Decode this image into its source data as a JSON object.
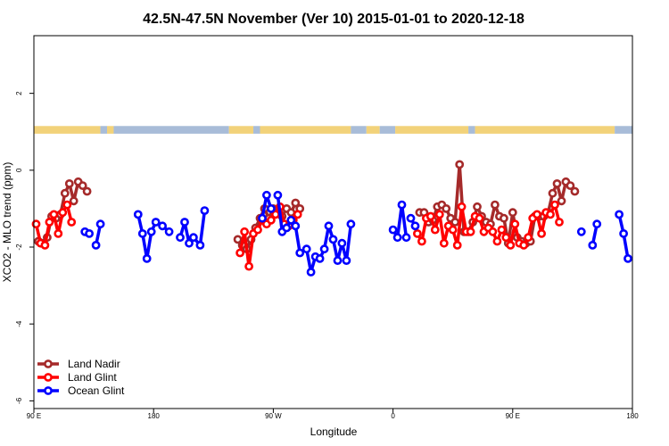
{
  "chart_data": {
    "type": "line",
    "title": "42.5N-47.5N November (Ver 10)   2015-01-01 to 2020-12-18",
    "xlabel": "Longitude",
    "ylabel": "XCO2 - MLO trend (ppm)",
    "xlim": [
      -90,
      180
    ],
    "ylim": [
      -6.2,
      3.5
    ],
    "x_ticks": [
      {
        "value": -90,
        "label": "90 E"
      },
      {
        "value": -36,
        "label": "180"
      },
      {
        "value": 18,
        "label": "90 W"
      },
      {
        "value": 72,
        "label": "0"
      },
      {
        "value": 126,
        "label": "90 E"
      },
      {
        "value": 180,
        "label": "180"
      }
    ],
    "y_ticks": [
      {
        "value": 2,
        "label": "2"
      },
      {
        "value": 0,
        "label": "0"
      },
      {
        "value": -2,
        "label": "-2"
      },
      {
        "value": -4,
        "label": "-4"
      },
      {
        "value": -6,
        "label": "-6"
      }
    ],
    "land_ocean_band": {
      "y_range": [
        0.95,
        1.15
      ],
      "land_color": "#f2d27a",
      "ocean_color": "#a8bcd8",
      "segments": [
        {
          "from": -90,
          "to": -60,
          "surface": "land"
        },
        {
          "from": -60,
          "to": -57,
          "surface": "ocean"
        },
        {
          "from": -57,
          "to": -54,
          "surface": "land"
        },
        {
          "from": -54,
          "to": -2,
          "surface": "ocean"
        },
        {
          "from": -2,
          "to": 9,
          "surface": "land"
        },
        {
          "from": 9,
          "to": 12,
          "surface": "ocean"
        },
        {
          "from": 12,
          "to": 53,
          "surface": "land"
        },
        {
          "from": 53,
          "to": 60,
          "surface": "ocean"
        },
        {
          "from": 60,
          "to": 66,
          "surface": "land"
        },
        {
          "from": 66,
          "to": 73,
          "surface": "ocean"
        },
        {
          "from": 73,
          "to": 106,
          "surface": "land"
        },
        {
          "from": 106,
          "to": 109,
          "surface": "ocean"
        },
        {
          "from": 109,
          "to": 172,
          "surface": "land"
        },
        {
          "from": 172,
          "to": 180,
          "surface": "ocean"
        }
      ]
    },
    "legend": {
      "position": "bottom-left"
    },
    "series": [
      {
        "name": "Land Nadir",
        "color": "#a52a2a",
        "points": [
          [
            -88,
            -1.85
          ],
          [
            -86,
            -1.9
          ],
          [
            -84,
            -1.75
          ],
          [
            -82,
            -1.2
          ],
          [
            -80,
            -1.25
          ],
          [
            -78,
            -1.15
          ],
          [
            -76,
            -0.6
          ],
          [
            -74,
            -0.35
          ],
          [
            -72,
            -0.8
          ],
          [
            -70,
            -0.3
          ],
          [
            -68,
            -0.4
          ],
          [
            -66,
            -0.55
          ],
          null,
          [
            2,
            -1.8
          ],
          [
            4,
            -1.95
          ],
          [
            6,
            -2.05
          ],
          [
            8,
            -1.8
          ],
          [
            10,
            -1.5
          ],
          [
            12,
            -1.25
          ],
          [
            14,
            -1.0
          ],
          [
            16,
            -1.25
          ],
          [
            18,
            -1.0
          ],
          [
            20,
            -1.1
          ],
          [
            22,
            -1.2
          ],
          [
            24,
            -1.0
          ],
          [
            26,
            -1.1
          ],
          [
            28,
            -0.85
          ],
          [
            30,
            -1.0
          ],
          null,
          [
            84,
            -1.1
          ],
          [
            86,
            -1.1
          ],
          [
            88,
            -1.35
          ],
          [
            90,
            -1.3
          ],
          [
            92,
            -0.95
          ],
          [
            94,
            -0.9
          ],
          [
            96,
            -1.0
          ],
          [
            98,
            -1.25
          ],
          [
            100,
            -1.35
          ],
          [
            102,
            0.15
          ],
          [
            104,
            -1.6
          ],
          [
            106,
            -1.6
          ],
          [
            108,
            -1.35
          ],
          [
            110,
            -0.95
          ],
          [
            112,
            -1.2
          ],
          [
            114,
            -1.35
          ],
          [
            116,
            -1.4
          ],
          [
            118,
            -0.9
          ],
          [
            120,
            -1.2
          ],
          [
            122,
            -1.25
          ],
          [
            124,
            -1.9
          ],
          [
            126,
            -1.1
          ],
          [
            128,
            -1.75
          ],
          [
            130,
            -1.85
          ],
          [
            132,
            -1.9
          ],
          [
            134,
            -1.85
          ],
          [
            136,
            -1.2
          ],
          [
            138,
            -1.2
          ],
          [
            140,
            -1.2
          ],
          [
            142,
            -1.1
          ],
          [
            144,
            -0.6
          ],
          [
            146,
            -0.35
          ],
          [
            148,
            -0.8
          ],
          [
            150,
            -0.3
          ],
          [
            152,
            -0.4
          ],
          [
            154,
            -0.55
          ]
        ]
      },
      {
        "name": "Land Glint",
        "color": "#ff0000",
        "points": [
          [
            -89,
            -1.4
          ],
          [
            -87,
            -1.9
          ],
          [
            -85,
            -1.95
          ],
          [
            -83,
            -1.35
          ],
          [
            -81,
            -1.15
          ],
          [
            -79,
            -1.65
          ],
          [
            -77,
            -1.1
          ],
          [
            -75,
            -0.9
          ],
          [
            -73,
            -1.35
          ],
          null,
          [
            3,
            -2.15
          ],
          [
            5,
            -1.6
          ],
          [
            7,
            -2.5
          ],
          [
            9,
            -1.65
          ],
          [
            11,
            -1.55
          ],
          [
            13,
            -1.3
          ],
          [
            15,
            -1.4
          ],
          [
            17,
            -1.3
          ],
          [
            19,
            -1.15
          ],
          [
            21,
            -0.95
          ],
          [
            23,
            -1.4
          ],
          [
            25,
            -1.45
          ],
          [
            27,
            -1.3
          ],
          [
            29,
            -1.15
          ],
          null,
          [
            83,
            -1.65
          ],
          [
            85,
            -1.85
          ],
          [
            87,
            -1.25
          ],
          [
            89,
            -1.2
          ],
          [
            91,
            -1.55
          ],
          [
            93,
            -1.15
          ],
          [
            95,
            -1.9
          ],
          [
            97,
            -1.45
          ],
          [
            99,
            -1.55
          ],
          [
            101,
            -1.95
          ],
          [
            103,
            -0.95
          ],
          [
            105,
            -1.6
          ],
          [
            107,
            -1.6
          ],
          [
            109,
            -1.2
          ],
          [
            111,
            -1.25
          ],
          [
            113,
            -1.6
          ],
          [
            115,
            -1.5
          ],
          [
            117,
            -1.6
          ],
          [
            119,
            -1.85
          ],
          [
            121,
            -1.55
          ],
          [
            123,
            -1.75
          ],
          [
            125,
            -1.95
          ],
          [
            127,
            -1.4
          ],
          [
            129,
            -1.9
          ],
          [
            131,
            -1.95
          ],
          [
            133,
            -1.75
          ],
          [
            135,
            -1.25
          ],
          [
            137,
            -1.15
          ],
          [
            139,
            -1.65
          ],
          [
            141,
            -1.1
          ],
          [
            143,
            -1.15
          ],
          [
            145,
            -0.9
          ],
          [
            147,
            -1.35
          ]
        ]
      },
      {
        "name": "Ocean Glint",
        "color": "#0000ff",
        "points": [
          [
            -67,
            -1.6
          ],
          [
            -65,
            -1.65
          ],
          null,
          [
            -62,
            -1.95
          ],
          [
            -60,
            -1.4
          ],
          null,
          [
            -43,
            -1.15
          ],
          [
            -41,
            -1.65
          ],
          [
            -39,
            -2.3
          ],
          [
            -37,
            -1.6
          ],
          [
            -35,
            -1.35
          ],
          [
            -32,
            -1.45
          ],
          [
            -29,
            -1.6
          ],
          null,
          [
            -24,
            -1.75
          ],
          [
            -22,
            -1.35
          ],
          [
            -20,
            -1.9
          ],
          [
            -18,
            -1.75
          ],
          [
            -15,
            -1.95
          ],
          [
            -13,
            -1.05
          ],
          null,
          [
            13,
            -1.25
          ],
          [
            15,
            -0.65
          ],
          [
            17,
            -1.0
          ],
          null,
          [
            20,
            -0.65
          ],
          [
            22,
            -1.6
          ],
          [
            24,
            -1.5
          ],
          [
            26,
            -1.3
          ],
          [
            28,
            -1.45
          ],
          [
            30,
            -2.15
          ],
          [
            33,
            -2.05
          ],
          [
            35,
            -2.65
          ],
          [
            37,
            -2.25
          ],
          [
            39,
            -2.3
          ],
          [
            41,
            -2.05
          ],
          [
            43,
            -1.45
          ],
          [
            45,
            -1.8
          ],
          [
            47,
            -2.35
          ],
          [
            49,
            -1.9
          ],
          [
            51,
            -2.35
          ],
          [
            53,
            -1.4
          ],
          null,
          [
            72,
            -1.55
          ],
          [
            74,
            -1.75
          ],
          [
            76,
            -0.9
          ],
          [
            78,
            -1.75
          ],
          null,
          [
            80,
            -1.25
          ],
          [
            82,
            -1.45
          ],
          null,
          [
            157,
            -1.6
          ],
          null,
          [
            162,
            -1.95
          ],
          [
            164,
            -1.4
          ],
          null,
          [
            174,
            -1.15
          ],
          [
            176,
            -1.65
          ],
          [
            178,
            -2.3
          ]
        ]
      }
    ]
  }
}
